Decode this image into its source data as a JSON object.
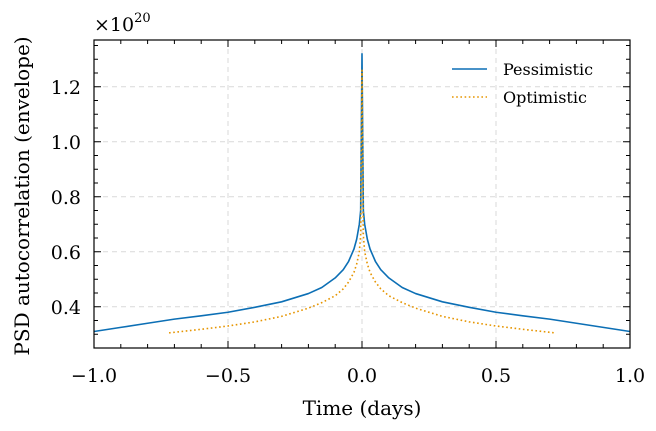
{
  "chart_data": {
    "type": "line",
    "title": "",
    "xlabel": "Time (days)",
    "ylabel": "PSD autocorrelation (envelope)",
    "y_multiplier_label": "×10",
    "y_multiplier_exponent": "20",
    "xlim": [
      -1.0,
      1.0
    ],
    "ylim": [
      0.25,
      1.37
    ],
    "xticks": [
      -1.0,
      -0.5,
      0.0,
      0.5,
      1.0
    ],
    "xtick_labels": [
      "−1.0",
      "−0.5",
      "0.0",
      "0.5",
      "1.0"
    ],
    "yticks": [
      0.4,
      0.6,
      0.8,
      1.0,
      1.2
    ],
    "ytick_labels": [
      "0.4",
      "0.6",
      "0.8",
      "1.0",
      "1.2"
    ],
    "grid": true,
    "legend_position": "top-right",
    "series": [
      {
        "name": "Pessimistic",
        "color": "#0C6FB5",
        "style": "solid",
        "x": [
          -1.0,
          -0.9,
          -0.8,
          -0.7,
          -0.6,
          -0.5,
          -0.4,
          -0.3,
          -0.2,
          -0.15,
          -0.1,
          -0.07,
          -0.05,
          -0.03,
          -0.02,
          -0.01,
          -0.005,
          0.0,
          0.005,
          0.01,
          0.02,
          0.03,
          0.05,
          0.07,
          0.1,
          0.15,
          0.2,
          0.3,
          0.4,
          0.5,
          0.6,
          0.7,
          0.8,
          0.9,
          1.0
        ],
        "y": [
          0.31,
          0.325,
          0.34,
          0.355,
          0.367,
          0.38,
          0.398,
          0.418,
          0.448,
          0.47,
          0.505,
          0.535,
          0.565,
          0.61,
          0.645,
          0.7,
          0.75,
          1.32,
          0.75,
          0.7,
          0.645,
          0.61,
          0.565,
          0.535,
          0.505,
          0.47,
          0.448,
          0.418,
          0.398,
          0.38,
          0.367,
          0.355,
          0.34,
          0.325,
          0.31
        ]
      },
      {
        "name": "Optimistic",
        "color": "#E69500",
        "style": "dotted",
        "x": [
          -0.72,
          -0.6,
          -0.5,
          -0.4,
          -0.3,
          -0.2,
          -0.15,
          -0.1,
          -0.07,
          -0.05,
          -0.03,
          -0.02,
          -0.01,
          -0.005,
          0.0,
          0.005,
          0.01,
          0.02,
          0.03,
          0.05,
          0.07,
          0.1,
          0.15,
          0.2,
          0.3,
          0.4,
          0.5,
          0.6,
          0.72
        ],
        "y": [
          0.305,
          0.318,
          0.33,
          0.345,
          0.365,
          0.395,
          0.415,
          0.44,
          0.465,
          0.49,
          0.525,
          0.555,
          0.6,
          0.66,
          1.26,
          0.66,
          0.6,
          0.555,
          0.525,
          0.49,
          0.465,
          0.44,
          0.415,
          0.395,
          0.365,
          0.345,
          0.33,
          0.318,
          0.305
        ]
      }
    ]
  }
}
